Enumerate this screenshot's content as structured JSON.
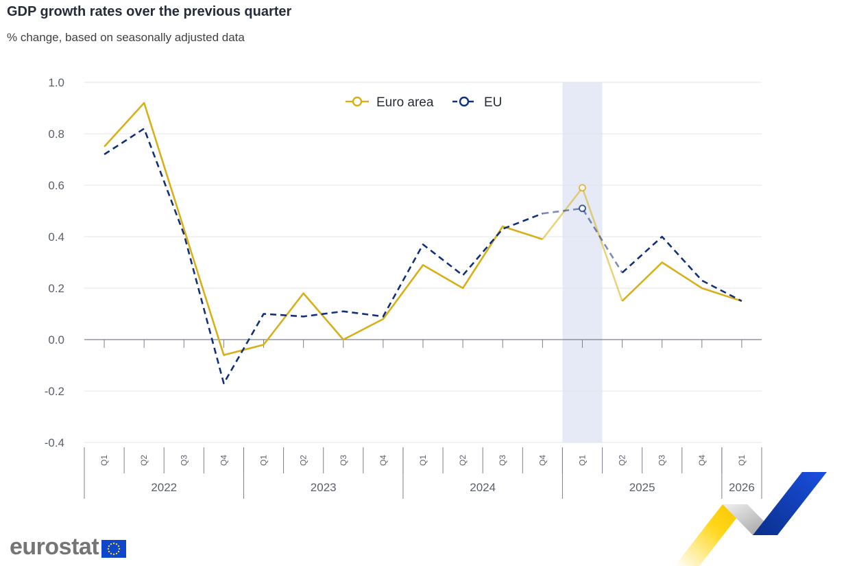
{
  "title": "GDP growth rates over the previous quarter",
  "subtitle": "% change, based on seasonally adjusted data",
  "brand": "eurostat",
  "chart_data": {
    "type": "line",
    "title": "GDP growth rates over the previous quarter",
    "subtitle": "% change, based on seasonally adjusted data",
    "ylim": [
      -0.4,
      1.0
    ],
    "yticks": [
      1.0,
      0.8,
      0.6,
      0.4,
      0.2,
      0.0,
      -0.2,
      -0.4
    ],
    "ytick_labels": [
      "1.0",
      "0.8",
      "0.6",
      "0.4",
      "0.2",
      "0.0",
      "-0.2",
      "-0.4"
    ],
    "grid": true,
    "legend_position": "top-center",
    "quarters": [
      "Q1",
      "Q2",
      "Q3",
      "Q4",
      "Q1",
      "Q2",
      "Q3",
      "Q4",
      "Q1",
      "Q2",
      "Q3",
      "Q4",
      "Q1",
      "Q2",
      "Q3",
      "Q4",
      "Q1"
    ],
    "years": [
      {
        "label": "2022",
        "count": 4
      },
      {
        "label": "2023",
        "count": 4
      },
      {
        "label": "2024",
        "count": 4
      },
      {
        "label": "2025",
        "count": 4
      },
      {
        "label": "2026",
        "count": 1
      }
    ],
    "highlight_index": 12,
    "series": [
      {
        "name": "Euro area",
        "color": "#d6b016",
        "dash": "solid",
        "values": [
          0.75,
          0.92,
          0.43,
          -0.06,
          -0.02,
          0.18,
          0.0,
          0.08,
          0.29,
          0.2,
          0.44,
          0.39,
          0.59,
          0.15,
          0.3,
          0.2,
          0.15
        ]
      },
      {
        "name": "EU",
        "color": "#12307a",
        "dash": "dashed",
        "values": [
          0.72,
          0.82,
          0.41,
          -0.17,
          0.1,
          0.09,
          0.11,
          0.09,
          0.37,
          0.25,
          0.43,
          0.49,
          0.51,
          0.26,
          0.4,
          0.23,
          0.15
        ]
      }
    ]
  }
}
